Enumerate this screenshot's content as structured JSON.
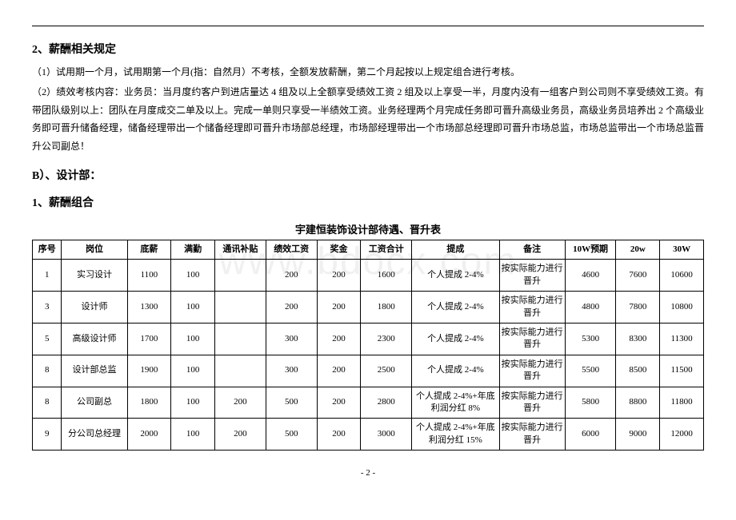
{
  "watermark": "www.bdocx.com",
  "hr_color": "#000000",
  "section2": {
    "heading": "2、薪酬相关规定",
    "p1": "（1）试用期一个月，试用期第一个月(指：自然月）不考核，全额发放薪酬，第二个月起按以上规定组合进行考核。",
    "p2": "（2）绩效考核内容：业务员：当月度约客户到进店量达 4 组及以上全额享受绩效工资 2 组及以上享受一半，月度内没有一组客户到公司则不享受绩效工资。有带团队级别以上：团队在月度成交二单及以上。完成一单则只享受一半绩效工资。业务经理两个月完成任务即可晋升高级业务员，高级业务员培养出 2 个高级业务即可晋升储备经理，储备经理带出一个储备经理即可晋升市场部总经理，市场部经理带出一个市场部总经理即可晋升市场总监，市场总监带出一个市场总监晋升公司副总！"
  },
  "sectionB": {
    "heading": "B）、设计部：",
    "subheading": "1、薪酬组合",
    "table_title": "宇建恒装饰设计部待遇、晋升表"
  },
  "table": {
    "col_widths": [
      "4%",
      "9%",
      "6%",
      "6%",
      "7%",
      "7%",
      "6%",
      "7%",
      "12%",
      "9%",
      "7%",
      "6%",
      "6%"
    ],
    "columns": [
      "序号",
      "岗位",
      "底薪",
      "满勤",
      "通讯补贴",
      "绩效工资",
      "奖金",
      "工资合计",
      "提成",
      "备注",
      "10W预期",
      "20w",
      "30W"
    ],
    "rows": [
      [
        "1",
        "实习设计",
        "1100",
        "100",
        "",
        "200",
        "200",
        "1600",
        "个人提成 2-4%",
        "按实际能力进行晋升",
        "4600",
        "7600",
        "10600"
      ],
      [
        "3",
        "设计师",
        "1300",
        "100",
        "",
        "200",
        "200",
        "1800",
        "个人提成 2-4%",
        "按实际能力进行晋升",
        "4800",
        "7800",
        "10800"
      ],
      [
        "5",
        "高级设计师",
        "1700",
        "100",
        "",
        "300",
        "200",
        "2300",
        "个人提成 2-4%",
        "按实际能力进行晋升",
        "5300",
        "8300",
        "11300"
      ],
      [
        "8",
        "设计部总监",
        "1900",
        "100",
        "",
        "300",
        "200",
        "2500",
        "个人提成 2-4%",
        "按实际能力进行晋升",
        "5500",
        "8500",
        "11500"
      ],
      [
        "8",
        "公司副总",
        "1800",
        "100",
        "200",
        "500",
        "200",
        "2800",
        "个人提成 2-4%+年底利润分红 8%",
        "按实际能力进行晋升",
        "5800",
        "8800",
        "11800"
      ],
      [
        "9",
        "分公司总经理",
        "2000",
        "100",
        "200",
        "500",
        "200",
        "3000",
        "个人提成 2-4%+年底利润分红 15%",
        "按实际能力进行晋升",
        "6000",
        "9000",
        "12000"
      ]
    ]
  },
  "page_number": "- 2 -"
}
